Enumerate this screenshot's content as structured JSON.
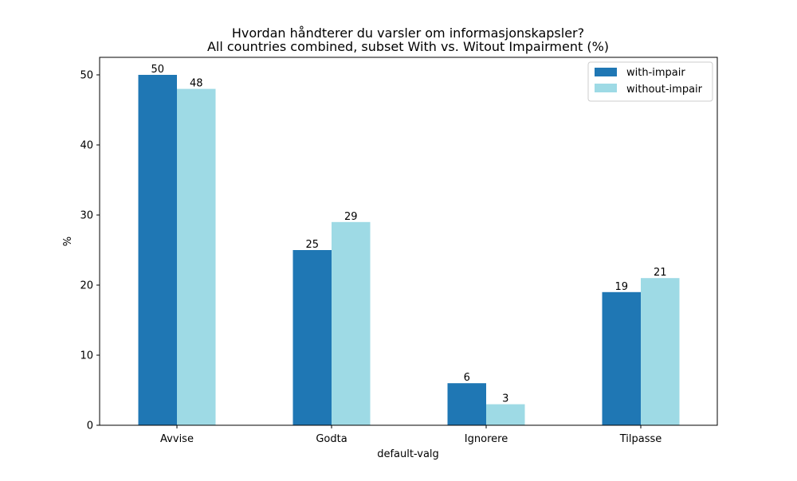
{
  "chart_data": {
    "type": "bar",
    "title": "Hvordan håndterer du varsler om informasjonskapsler?",
    "subtitle": "All countries combined, subset With vs. Witout Impairment (%)",
    "xlabel": "default-valg",
    "ylabel": "%",
    "ylim": [
      0,
      52.5
    ],
    "yticks": [
      0,
      10,
      20,
      30,
      40,
      50
    ],
    "categories": [
      "Avvise",
      "Godta",
      "Ignorere",
      "Tilpasse"
    ],
    "series": [
      {
        "name": "with-impair",
        "color": "#1f77b4",
        "values": [
          50,
          25,
          6,
          19
        ]
      },
      {
        "name": "without-impair",
        "color": "#9edae5",
        "values": [
          48,
          29,
          3,
          21
        ]
      }
    ],
    "legend_position": "top-right",
    "grid": false
  }
}
